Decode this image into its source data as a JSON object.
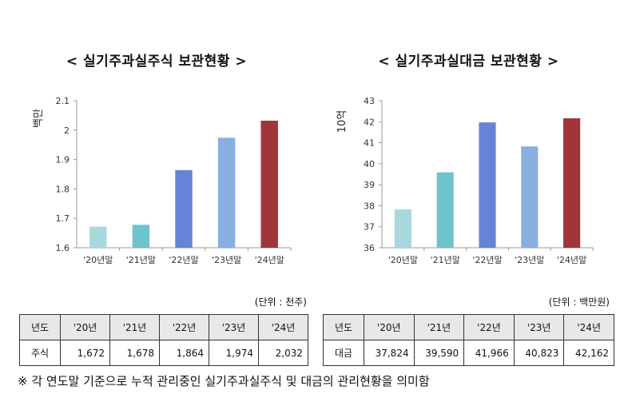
{
  "footnote": "※ 각 연도말 기준으로 누적 관리중인 실기주과실주식 및 대금의 관리현황을 의미함",
  "chart_data": [
    {
      "type": "bar",
      "title": "< 실기주과실주식 보관현황 >",
      "ylabel": "백만",
      "unit": "(단위 : 천주)",
      "categories": [
        "'20년말",
        "'21년말",
        "'22년말",
        "'23년말",
        "'24년말"
      ],
      "values": [
        1.672,
        1.678,
        1.864,
        1.974,
        2.032
      ],
      "ylim": [
        1.6,
        2.1
      ],
      "yticks": [
        "1.6",
        "1.7",
        "1.8",
        "1.9",
        "2",
        "2.1"
      ],
      "colors": [
        "#a8d8dd",
        "#6ec3cc",
        "#6684d6",
        "#89aee0",
        "#a0353a"
      ],
      "grid": false,
      "table": {
        "header": [
          "년도",
          "'20년",
          "'21년",
          "'22년",
          "'23년",
          "'24년"
        ],
        "row_label": "주식",
        "row": [
          "1,672",
          "1,678",
          "1,864",
          "1,974",
          "2,032"
        ]
      }
    },
    {
      "type": "bar",
      "title": "< 실기주과실대금 보관현황 >",
      "ylabel": "10억",
      "unit": "(단위 : 백만원)",
      "categories": [
        "'20년말",
        "'21년말",
        "'22년말",
        "'23년말",
        "'24년말"
      ],
      "values": [
        37.824,
        39.59,
        41.966,
        40.823,
        42.162
      ],
      "ylim": [
        36,
        43
      ],
      "yticks": [
        "36",
        "37",
        "38",
        "39",
        "40",
        "41",
        "42",
        "43"
      ],
      "colors": [
        "#a8d8dd",
        "#6ec3cc",
        "#6684d6",
        "#89aee0",
        "#a0353a"
      ],
      "grid": false,
      "table": {
        "header": [
          "년도",
          "'20년",
          "'21년",
          "'22년",
          "'23년",
          "'24년"
        ],
        "row_label": "대금",
        "row": [
          "37,824",
          "39,590",
          "41,966",
          "40,823",
          "42,162"
        ]
      }
    }
  ]
}
